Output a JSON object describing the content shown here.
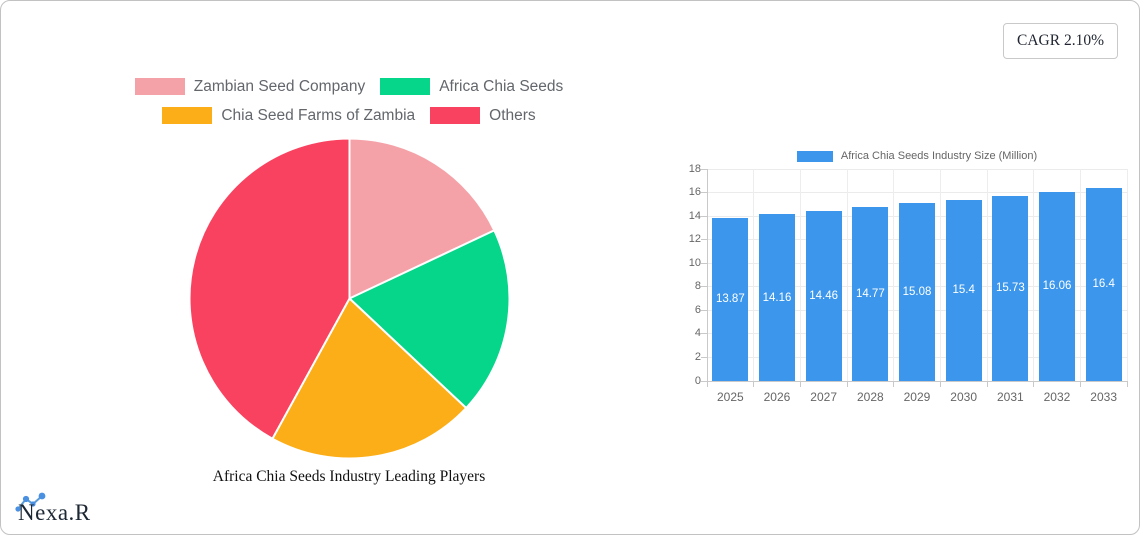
{
  "window": {
    "background": "#ffffff",
    "border_color": "#c2c2c2"
  },
  "badge": {
    "label": "CAGR 2.10%"
  },
  "brand": {
    "name": "Nexa.R",
    "icon": "line-chart-dots-icon",
    "icon_color": "#4a90e2"
  },
  "chart_data": [
    {
      "type": "pie",
      "title": "Africa Chia Seeds Industry Leading Players",
      "labels": [
        "Zambian Seed Company",
        "Africa Chia Seeds",
        "Chia Seed Farms of Zambia",
        "Others"
      ],
      "values_percent": [
        18,
        19,
        21,
        42
      ],
      "colors": [
        "#F4A2A8",
        "#05D689",
        "#FBAE17",
        "#F9425F"
      ],
      "legend_rows": [
        [
          0,
          1
        ],
        [
          2,
          3
        ]
      ],
      "legend_position": "top",
      "start_angle": "top",
      "direction": "clockwise"
    },
    {
      "type": "bar",
      "legend": "Africa Chia Seeds Industry Size (Million)",
      "categories": [
        "2025",
        "2026",
        "2027",
        "2028",
        "2029",
        "2030",
        "2031",
        "2032",
        "2033"
      ],
      "values": [
        13.87,
        14.16,
        14.46,
        14.77,
        15.08,
        15.4,
        15.73,
        16.06,
        16.4
      ],
      "bar_color": "#3C96EC",
      "value_label_color": "#ffffff",
      "ylim": [
        0,
        18
      ],
      "ytick_step": 2,
      "grid": true,
      "axis_text_color": "#666666",
      "legend_position": "top"
    }
  ],
  "theme": {
    "legend_text": "#63676c",
    "grid_line": "#ebebeb",
    "axis_line": "#c9c9c9",
    "title_text": "#111111",
    "badge_text": "#1f2430",
    "brand_text": "#1c2733"
  }
}
